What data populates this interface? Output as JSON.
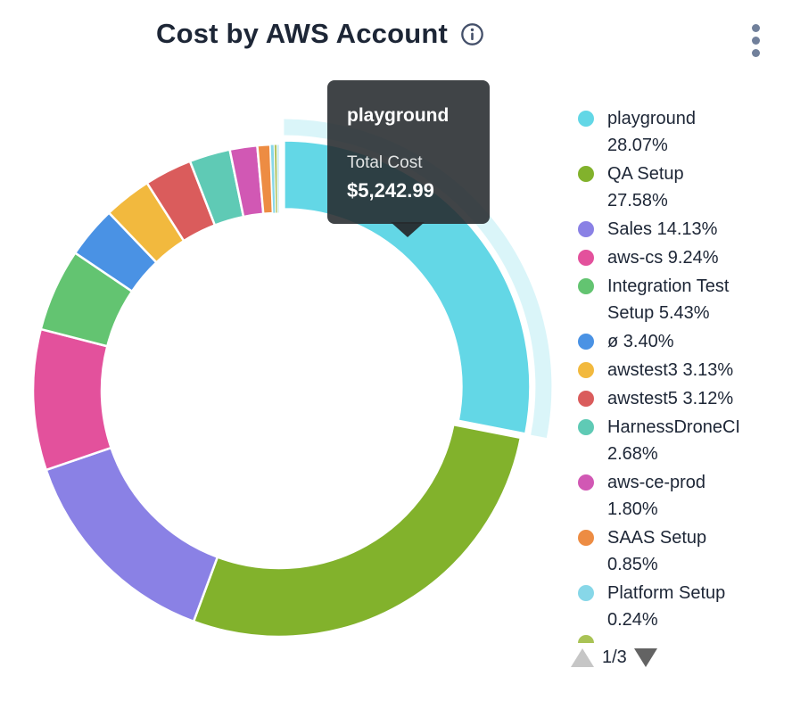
{
  "header": {
    "title": "Cost by AWS Account",
    "icons": {
      "info": "info-circle",
      "menu": "kebab-vertical"
    }
  },
  "tooltip": {
    "name": "playground",
    "label": "Total Cost",
    "value": "$5,242.99"
  },
  "legend": {
    "items": [
      {
        "label": "playground",
        "percent": "28.07%",
        "lines": [
          "playground",
          "28.07%"
        ],
        "color": "#63d7e6"
      },
      {
        "label": "QA Setup",
        "percent": "27.58%",
        "lines": [
          "QA Setup",
          "27.58%"
        ],
        "color": "#82b22c"
      },
      {
        "label": "Sales",
        "percent": "14.13%",
        "lines": [
          "Sales 14.13%"
        ],
        "color": "#8a81e5"
      },
      {
        "label": "aws-cs",
        "percent": "9.24%",
        "lines": [
          "aws-cs 9.24%"
        ],
        "color": "#e3519c"
      },
      {
        "label": "Integration Test Setup",
        "percent": "5.43%",
        "lines": [
          "Integration Test",
          "Setup 5.43%"
        ],
        "color": "#63c471"
      },
      {
        "label": "ø",
        "percent": "3.40%",
        "lines": [
          "ø 3.40%"
        ],
        "color": "#4a92e4"
      },
      {
        "label": "awstest3",
        "percent": "3.13%",
        "lines": [
          "awstest3 3.13%"
        ],
        "color": "#f2b93e"
      },
      {
        "label": "awstest5",
        "percent": "3.12%",
        "lines": [
          "awstest5 3.12%"
        ],
        "color": "#da5c5c"
      },
      {
        "label": "HarnessDroneCI",
        "percent": "2.68%",
        "lines": [
          "HarnessDroneCI",
          "2.68%"
        ],
        "color": "#5fcab5"
      },
      {
        "label": "aws-ce-prod",
        "percent": "1.80%",
        "lines": [
          "aws-ce-prod",
          "1.80%"
        ],
        "color": "#d158b4"
      },
      {
        "label": "SAAS Setup",
        "percent": "0.85%",
        "lines": [
          "SAAS Setup",
          "0.85%"
        ],
        "color": "#ed8c43"
      },
      {
        "label": "Platform Setup",
        "percent": "0.24%",
        "lines": [
          "Platform Setup",
          "0.24%"
        ],
        "color": "#87d7e8"
      },
      {
        "label": "",
        "percent": "",
        "lines": [],
        "color": "#a9c355",
        "clipped": true
      }
    ],
    "pagination": {
      "label": "1/3",
      "up_icon": "triangle-up",
      "down_icon": "triangle-down"
    }
  },
  "chart_data": {
    "type": "pie",
    "subtype": "donut",
    "title": "Cost by AWS Account",
    "legend_position": "right",
    "value_unit": "percent",
    "hovered": {
      "label": "playground",
      "total_cost_label": "Total Cost",
      "total_cost": "$5,242.99",
      "percent": 28.07
    },
    "slices": [
      {
        "label": "playground",
        "value": 28.07,
        "color": "#63d7e6",
        "hovered": true
      },
      {
        "label": "QA Setup",
        "value": 27.58,
        "color": "#82b22c"
      },
      {
        "label": "Sales",
        "value": 14.13,
        "color": "#8a81e5"
      },
      {
        "label": "aws-cs",
        "value": 9.24,
        "color": "#e3519c"
      },
      {
        "label": "Integration Test Setup",
        "value": 5.43,
        "color": "#63c471"
      },
      {
        "label": "ø",
        "value": 3.4,
        "color": "#4a92e4"
      },
      {
        "label": "awstest3",
        "value": 3.13,
        "color": "#f2b93e"
      },
      {
        "label": "awstest5",
        "value": 3.12,
        "color": "#da5c5c"
      },
      {
        "label": "HarnessDroneCI",
        "value": 2.68,
        "color": "#5fcab5"
      },
      {
        "label": "aws-ce-prod",
        "value": 1.8,
        "color": "#d158b4"
      },
      {
        "label": "SAAS Setup",
        "value": 0.85,
        "color": "#ed8c43"
      },
      {
        "label": "Platform Setup",
        "value": 0.24,
        "color": "#87d7e8"
      },
      {
        "label": "",
        "value": 0.2,
        "color": "#b3c465"
      },
      {
        "label": "",
        "value": 0.13,
        "color": "#aee3ef"
      }
    ]
  }
}
